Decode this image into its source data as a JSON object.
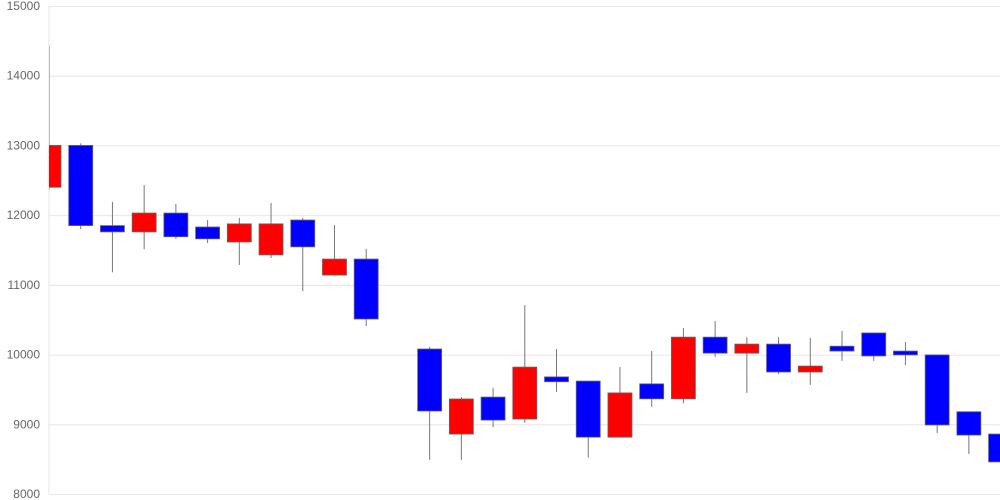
{
  "chart_data": {
    "type": "candlestick",
    "title": "",
    "xlabel": "",
    "ylabel": "",
    "ylim": [
      8000,
      15000
    ],
    "yticks": [
      8000,
      9000,
      10000,
      11000,
      12000,
      13000,
      14000,
      15000
    ],
    "grid": {
      "horizontal": true,
      "vertical": false
    },
    "colors": {
      "up": "#ff0000",
      "down": "#0000ff",
      "wick": "#777777",
      "grid": "#e6e6e6",
      "tick_text": "#666666"
    },
    "candles": [
      {
        "open": 12400,
        "close": 13000,
        "high": 14430,
        "low": 12360
      },
      {
        "open": 13000,
        "close": 11850,
        "high": 13030,
        "low": 11800
      },
      {
        "open": 11850,
        "close": 11760,
        "high": 12190,
        "low": 11180
      },
      {
        "open": 11760,
        "close": 12030,
        "high": 12430,
        "low": 11510
      },
      {
        "open": 12030,
        "close": 11690,
        "high": 12160,
        "low": 11660
      },
      {
        "open": 11830,
        "close": 11660,
        "high": 11930,
        "low": 11600
      },
      {
        "open": 11615,
        "close": 11875,
        "high": 11960,
        "low": 11285
      },
      {
        "open": 11430,
        "close": 11875,
        "high": 12175,
        "low": 11385
      },
      {
        "open": 11930,
        "close": 11545,
        "high": 11960,
        "low": 10910
      },
      {
        "open": 11140,
        "close": 11370,
        "high": 11860,
        "low": 11130
      },
      {
        "open": 11370,
        "close": 10510,
        "high": 11515,
        "low": 10410
      },
      null,
      {
        "open": 10080,
        "close": 9190,
        "high": 10110,
        "low": 8490
      },
      {
        "open": 8860,
        "close": 9363,
        "high": 9390,
        "low": 8490
      },
      {
        "open": 9390,
        "close": 9060,
        "high": 9520,
        "low": 8960
      },
      {
        "open": 9075,
        "close": 9820,
        "high": 10710,
        "low": 9020
      },
      {
        "open": 9680,
        "close": 9610,
        "high": 10080,
        "low": 9465
      },
      {
        "open": 9620,
        "close": 8815,
        "high": 9620,
        "low": 8520
      },
      {
        "open": 8815,
        "close": 9450,
        "high": 9820,
        "low": 8815
      },
      {
        "open": 9580,
        "close": 9365,
        "high": 10050,
        "low": 9250
      },
      {
        "open": 9365,
        "close": 10250,
        "high": 10380,
        "low": 9300
      },
      {
        "open": 10250,
        "close": 10020,
        "high": 10480,
        "low": 9965
      },
      {
        "open": 10020,
        "close": 10150,
        "high": 10250,
        "low": 9450
      },
      {
        "open": 10150,
        "close": 9750,
        "high": 10250,
        "low": 9720
      },
      {
        "open": 9750,
        "close": 9835,
        "high": 10240,
        "low": 9565
      },
      {
        "open": 10120,
        "close": 10050,
        "high": 10340,
        "low": 9910
      },
      {
        "open": 10310,
        "close": 9980,
        "high": 10310,
        "low": 9910
      },
      {
        "open": 10050,
        "close": 9995,
        "high": 10180,
        "low": 9850
      },
      {
        "open": 9995,
        "close": 8990,
        "high": 9995,
        "low": 8875
      },
      {
        "open": 9180,
        "close": 8845,
        "high": 9180,
        "low": 8575
      },
      {
        "open": 8860,
        "close": 8460,
        "high": 8945,
        "low": 8460
      }
    ]
  }
}
